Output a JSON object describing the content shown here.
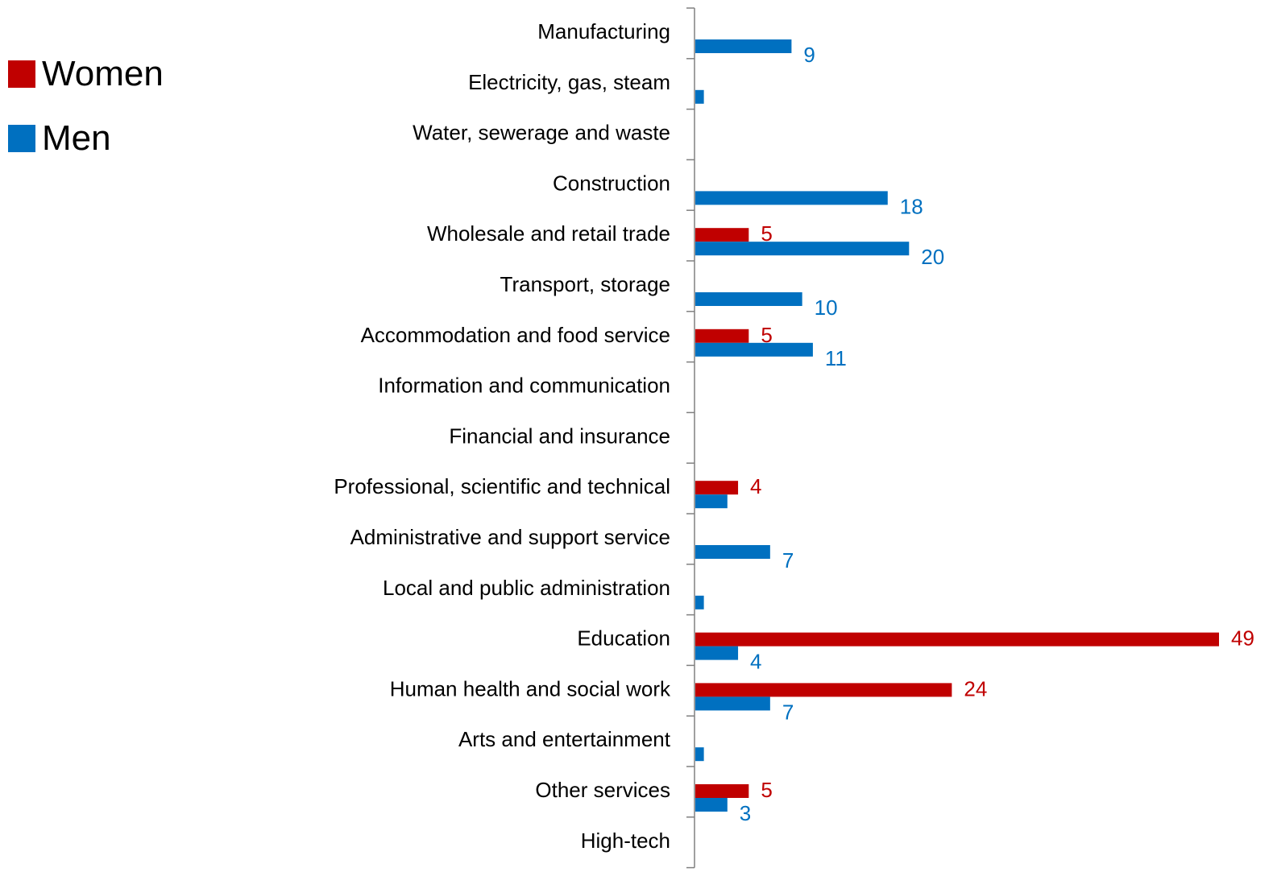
{
  "chart_data": {
    "type": "bar",
    "orientation": "horizontal",
    "categories": [
      "Manufacturing",
      "Electricity, gas, steam",
      "Water, sewerage and waste",
      "Construction",
      "Wholesale and retail trade",
      "Transport, storage",
      "Accommodation and food service",
      "Information and communication",
      "Financial and insurance",
      "Professional, scientific and technical",
      "Administrative and support service",
      "Local and public administration",
      "Education",
      "Human health and social work",
      "Arts and entertainment",
      "Other services",
      "High-tech"
    ],
    "series": [
      {
        "name": "Women",
        "color": "#c00000",
        "values": [
          0,
          0,
          0,
          0,
          5,
          0,
          5,
          0,
          0,
          4,
          0,
          0,
          49,
          24,
          0,
          5,
          0
        ],
        "labels": [
          "",
          "",
          "",
          "",
          "5",
          "",
          "5",
          "",
          "",
          "4",
          "",
          "",
          "49",
          "24",
          "",
          "5",
          ""
        ]
      },
      {
        "name": "Men",
        "color": "#0070c0",
        "values": [
          9,
          0.8,
          0,
          18,
          20,
          10,
          11,
          0,
          0,
          3,
          7,
          0.8,
          4,
          7,
          0.8,
          3,
          0
        ],
        "labels": [
          "9",
          "",
          "",
          "18",
          "20",
          "10",
          "11",
          "",
          "",
          "",
          "7",
          "",
          "4",
          "7",
          "",
          "3",
          ""
        ]
      }
    ],
    "xlim": [
      0,
      49
    ],
    "legend_position": "top-left",
    "grid": false
  }
}
